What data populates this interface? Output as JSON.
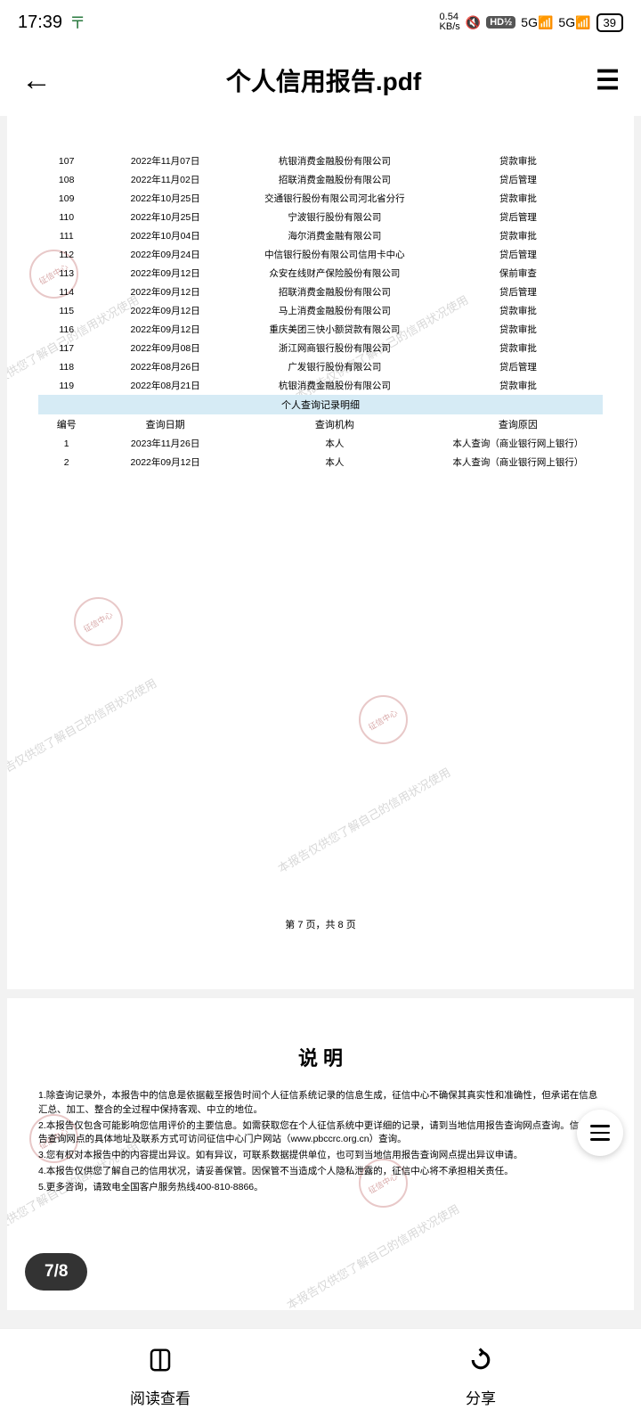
{
  "status": {
    "time": "17:39",
    "speed_val": "0.54",
    "speed_unit": "KB/s",
    "hd": "HD½",
    "sig1": "5G",
    "sig2": "5G",
    "battery": "39"
  },
  "header": {
    "title": "个人信用报告.pdf"
  },
  "table1": {
    "rows": [
      {
        "n": "107",
        "d": "2022年11月07日",
        "o": "杭银消费金融股份有限公司",
        "r": "贷款审批"
      },
      {
        "n": "108",
        "d": "2022年11月02日",
        "o": "招联消费金融股份有限公司",
        "r": "贷后管理"
      },
      {
        "n": "109",
        "d": "2022年10月25日",
        "o": "交通银行股份有限公司河北省分行",
        "r": "贷款审批"
      },
      {
        "n": "110",
        "d": "2022年10月25日",
        "o": "宁波银行股份有限公司",
        "r": "贷后管理"
      },
      {
        "n": "111",
        "d": "2022年10月04日",
        "o": "海尔消费金融有限公司",
        "r": "贷款审批"
      },
      {
        "n": "112",
        "d": "2022年09月24日",
        "o": "中信银行股份有限公司信用卡中心",
        "r": "贷后管理"
      },
      {
        "n": "113",
        "d": "2022年09月12日",
        "o": "众安在线财产保险股份有限公司",
        "r": "保前审查"
      },
      {
        "n": "114",
        "d": "2022年09月12日",
        "o": "招联消费金融股份有限公司",
        "r": "贷后管理"
      },
      {
        "n": "115",
        "d": "2022年09月12日",
        "o": "马上消费金融股份有限公司",
        "r": "贷款审批"
      },
      {
        "n": "116",
        "d": "2022年09月12日",
        "o": "重庆美团三快小额贷款有限公司",
        "r": "贷款审批"
      },
      {
        "n": "117",
        "d": "2022年09月08日",
        "o": "浙江网商银行股份有限公司",
        "r": "贷款审批"
      },
      {
        "n": "118",
        "d": "2022年08月26日",
        "o": "广发银行股份有限公司",
        "r": "贷后管理"
      },
      {
        "n": "119",
        "d": "2022年08月21日",
        "o": "杭银消费金融股份有限公司",
        "r": "贷款审批"
      }
    ]
  },
  "section2": {
    "title": "个人查询记录明细",
    "h1": "编号",
    "h2": "查询日期",
    "h3": "查询机构",
    "h4": "查询原因",
    "rows": [
      {
        "n": "1",
        "d": "2023年11月26日",
        "o": "本人",
        "r": "本人查询（商业银行网上银行）"
      },
      {
        "n": "2",
        "d": "2022年09月12日",
        "o": "本人",
        "r": "本人查询（商业银行网上银行）"
      }
    ]
  },
  "pagenum": "第 7 页，共 8 页",
  "shuoming": {
    "title": "说 明",
    "items": [
      "1.除查询记录外，本报告中的信息是依据截至报告时间个人征信系统记录的信息生成，征信中心不确保其真实性和准确性，但承诺在信息汇总、加工、整合的全过程中保持客观、中立的地位。",
      "2.本报告仅包含可能影响您信用评价的主要信息。如需获取您在个人征信系统中更详细的记录，请到当地信用报告查询网点查询。信用报告查询网点的具体地址及联系方式可访问征信中心门户网站（www.pbccrc.org.cn）查询。",
      "3.您有权对本报告中的内容提出异议。如有异议，可联系数据提供单位，也可到当地信用报告查询网点提出异议申请。",
      "4.本报告仅供您了解自己的信用状况，请妥善保管。因保管不当造成个人隐私泄露的，征信中心将不承担相关责任。",
      "5.更多咨询，请致电全国客户服务热线400-810-8866。"
    ]
  },
  "indicator": "7/8",
  "bottom": {
    "read": "阅读查看",
    "share": "分享"
  },
  "watermark": "本报告仅供您了解自己的信用状况使用",
  "colors": {
    "section_bg": "#d6ebf5",
    "wm_color": "#d8d8d8",
    "stamp_color": "#d8a8a8"
  }
}
